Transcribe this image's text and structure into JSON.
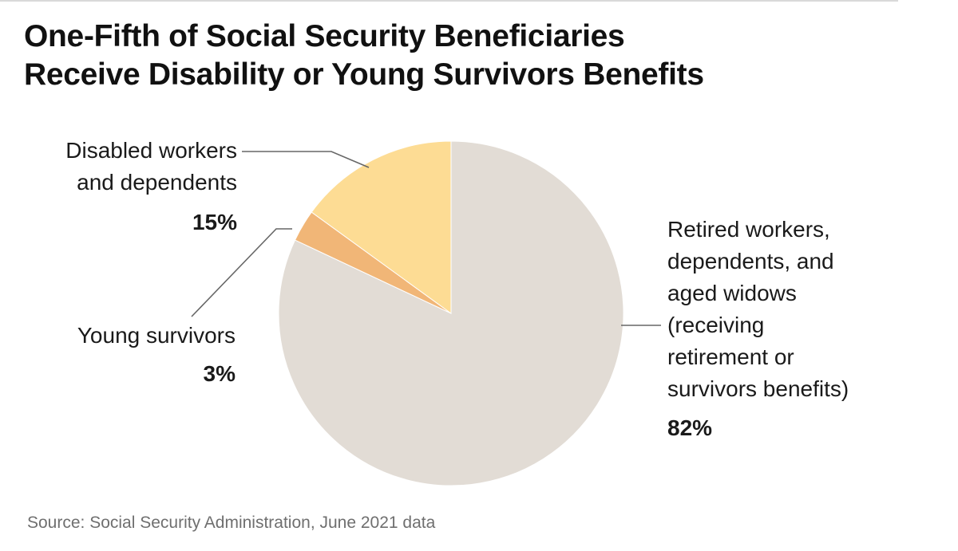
{
  "title": {
    "line1": "One-Fifth of Social Security Beneficiaries",
    "line2": "Receive Disability or Young Survivors Benefits"
  },
  "chart_data": {
    "type": "pie",
    "title": "One-Fifth of Social Security Beneficiaries Receive Disability or Young Survivors Benefits",
    "start_angle_deg": 0,
    "direction": "clockwise",
    "slices": [
      {
        "name": "Retired workers, dependents, and aged widows (receiving retirement or survivors benefits)",
        "label_lines": [
          "Retired workers,",
          "dependents, and",
          "aged widows",
          "(receiving",
          "retirement or",
          "survivors benefits)"
        ],
        "value": 82,
        "value_label": "82%",
        "color": "#e2dcd5"
      },
      {
        "name": "Young survivors",
        "label_lines": [
          "Young survivors"
        ],
        "value": 3,
        "value_label": "3%",
        "color": "#f1b677"
      },
      {
        "name": "Disabled workers and dependents",
        "label_lines": [
          "Disabled workers",
          "and dependents"
        ],
        "value": 15,
        "value_label": "15%",
        "color": "#fddc94"
      }
    ]
  },
  "source": "Source: Social Security Administration, June 2021 data",
  "colors": {
    "background": "#ffffff",
    "text": "#111111",
    "source_text": "#6f6f6f",
    "leader_line": "#666666",
    "slice_stroke": "#ffffff"
  }
}
